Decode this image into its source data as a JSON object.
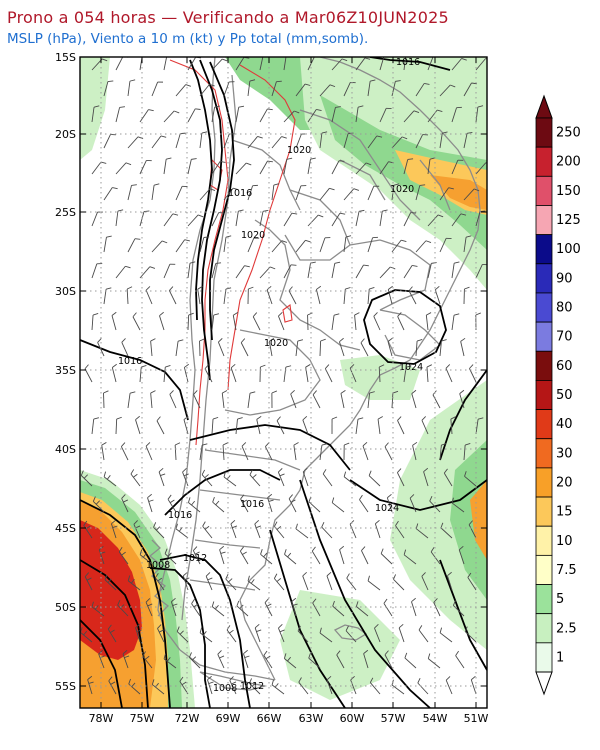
{
  "header": {
    "title": "Prono a 054 horas — Verificando a Mar06Z10JUN2025",
    "subtitle": "MSLP (hPa), Viento a 10 m (kt) y Pp total (mm,somb)."
  },
  "map": {
    "lat_labels": [
      "15S",
      "20S",
      "25S",
      "30S",
      "35S",
      "40S",
      "45S",
      "50S",
      "55S"
    ],
    "lon_labels": [
      "78W",
      "75W",
      "72W",
      "69W",
      "66W",
      "63W",
      "60W",
      "57W",
      "54W",
      "51W"
    ],
    "isobar_labels": [
      "1016",
      "1020",
      "1020",
      "1016",
      "1020",
      "1020",
      "1016",
      "1024",
      "1016",
      "1016",
      "1024",
      "1012",
      "1008",
      "1008",
      "1012"
    ],
    "colors": {
      "coast": "#8c8c8c",
      "isobar": "#000000",
      "highland": "#e03a3a",
      "rain_light": "#cdf0c5",
      "rain_mid": "#8fd88f",
      "rain_orange": "#f6a030",
      "rain_red": "#d8271b"
    }
  },
  "colorbar": {
    "levels": [
      "250",
      "200",
      "150",
      "125",
      "100",
      "90",
      "80",
      "70",
      "60",
      "50",
      "40",
      "30",
      "20",
      "15",
      "10",
      "7.5",
      "5",
      "2.5",
      "1"
    ],
    "colors": [
      "#6d0a12",
      "#c7212e",
      "#e0506a",
      "#f6a6b3",
      "#0b0b8a",
      "#2a2ab8",
      "#4a4ad2",
      "#7b7be0",
      "#7a0d0d",
      "#b51616",
      "#e03a18",
      "#f06a20",
      "#f8a028",
      "#fcc85a",
      "#fff2a8",
      "#ffffc8",
      "#9be29b",
      "#c8f0c0",
      "#eafaea"
    ]
  }
}
